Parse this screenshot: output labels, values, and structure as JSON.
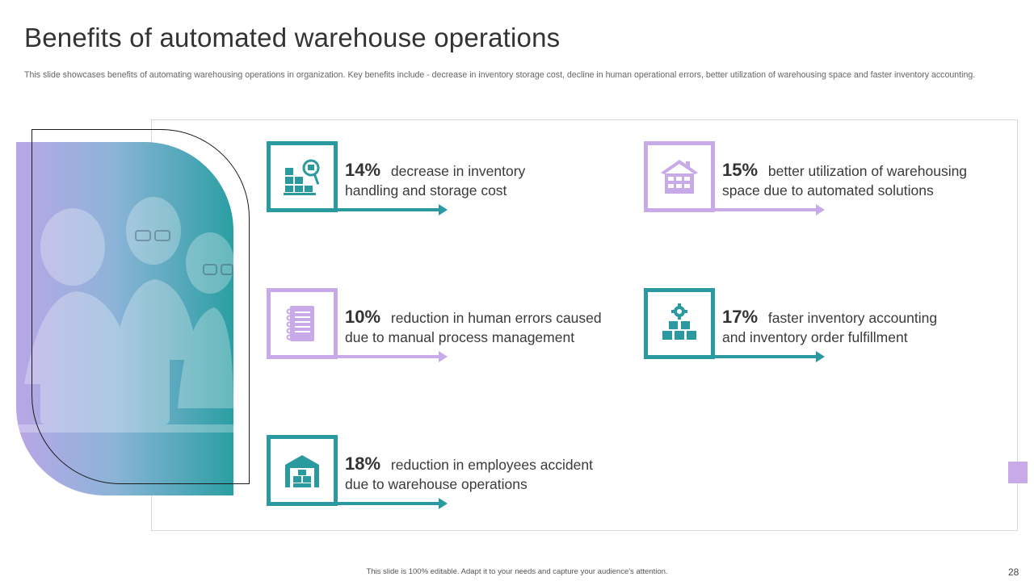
{
  "slide": {
    "title": "Benefits of automated warehouse operations",
    "subtitle": "This slide showcases benefits of automating warehousing operations in organization. Key benefits include - decrease in inventory storage cost, decline in human operational errors, better utilization of warehousing space and faster inventory accounting.",
    "footer": "This slide is 100% editable. Adapt it to your needs and capture your audience's attention.",
    "page_number": "28"
  },
  "colors": {
    "teal": "#2a9aa0",
    "lavender": "#c8aae8"
  },
  "benefits": [
    {
      "percent": "14%",
      "text_line1": "decrease in inventory",
      "text_line2": "handling and storage cost",
      "icon": "inventory-search-icon",
      "color": "teal"
    },
    {
      "percent": "15%",
      "text_line1": "better utilization of warehousing",
      "text_line2": "space due to automated solutions",
      "icon": "warehouse-building-icon",
      "color": "lavender"
    },
    {
      "percent": "10%",
      "text_line1": "reduction in human errors caused",
      "text_line2": "due to manual process management",
      "icon": "notebook-checklist-icon",
      "color": "lavender"
    },
    {
      "percent": "17%",
      "text_line1": "faster inventory accounting",
      "text_line2": "and inventory order fulfillment",
      "icon": "gear-boxes-icon",
      "color": "teal"
    },
    {
      "percent": "18%",
      "text_line1": "reduction in employees accident",
      "text_line2": "due to warehouse operations",
      "icon": "warehouse-garage-icon",
      "color": "teal"
    }
  ],
  "image": {
    "icon": "team-photo"
  }
}
